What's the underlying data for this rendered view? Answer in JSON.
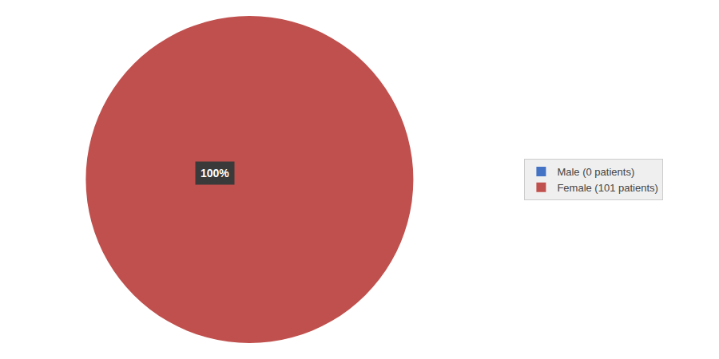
{
  "chart_data": {
    "type": "pie",
    "categories": [
      "Male (0 patients)",
      "Female (101 patients)"
    ],
    "values": [
      0.0001,
      100
    ],
    "colors": [
      "#4472C4",
      "#C0504D"
    ],
    "annotations": [
      "100%"
    ],
    "legend": "right"
  }
}
